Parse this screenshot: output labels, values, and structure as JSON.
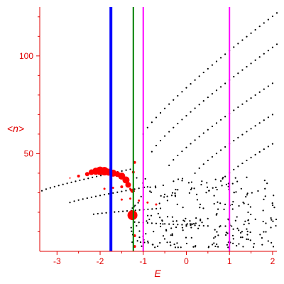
{
  "chart_data": {
    "type": "scatter",
    "title": "",
    "xlabel": "E",
    "ylabel": "<n>",
    "xlim": [
      -3.4,
      2.1
    ],
    "ylim": [
      0,
      125
    ],
    "xticks": [
      -3,
      -2,
      -1,
      0,
      1,
      2
    ],
    "xtick_labels": [
      "-3",
      "-2",
      "-1",
      "0",
      "1",
      "2"
    ],
    "yticks": [
      50,
      100
    ],
    "ytick_labels": [
      "50",
      "100"
    ],
    "grid": false,
    "axis_color": "#e00000",
    "colors": {
      "black_dots": "#000000",
      "red_dots": "#ff0000",
      "blue_line": "#0000ff",
      "green_line": "#008000",
      "magenta_line": "#ff00ff"
    },
    "vertical_lines": [
      {
        "x": -1.75,
        "color": "#0000ff",
        "weight": "thick"
      },
      {
        "x": -1.23,
        "color": "#008000",
        "weight": "thin"
      },
      {
        "x": -1.0,
        "color": "#ff00ff",
        "weight": "thin"
      },
      {
        "x": 1.0,
        "color": "#ff00ff",
        "weight": "thin"
      }
    ],
    "series": [
      {
        "color": "#000000",
        "marker": "small-dot",
        "bands": [
          {
            "x_start": -1.0,
            "x_end": 2.1,
            "y_start": 60,
            "y_end": 122
          },
          {
            "x_start": -0.8,
            "x_end": 2.1,
            "y_start": 51,
            "y_end": 106
          },
          {
            "x_start": -0.4,
            "x_end": 2.0,
            "y_start": 44,
            "y_end": 86
          },
          {
            "x_start": 0.2,
            "x_end": 2.0,
            "y_start": 40,
            "y_end": 70
          },
          {
            "x_start": 0.8,
            "x_end": 2.0,
            "y_start": 36,
            "y_end": 55
          },
          {
            "x_start": -3.35,
            "x_end": -1.3,
            "y_start": 31,
            "y_end": 42
          },
          {
            "x_start": -2.7,
            "x_end": -0.9,
            "y_start": 25,
            "y_end": 33
          },
          {
            "x_start": -2.15,
            "x_end": -0.6,
            "y_start": 19,
            "y_end": 22
          },
          {
            "x_start": -1.2,
            "x_end": 0.5,
            "y_start": 15,
            "y_end": 13
          }
        ],
        "cloud": {
          "x_range": [
            -1.3,
            2.1
          ],
          "y_range": [
            2,
            38
          ],
          "count": 260
        }
      },
      {
        "color": "#ff0000",
        "marker": "dot-sized-by-weight",
        "points": [
          {
            "x": -2.3,
            "y": 39.5,
            "size": 3
          },
          {
            "x": -2.2,
            "y": 40.5,
            "size": 4
          },
          {
            "x": -2.1,
            "y": 41.0,
            "size": 5
          },
          {
            "x": -2.0,
            "y": 41.2,
            "size": 6
          },
          {
            "x": -1.9,
            "y": 41.0,
            "size": 6
          },
          {
            "x": -1.8,
            "y": 40.5,
            "size": 5
          },
          {
            "x": -1.7,
            "y": 40.0,
            "size": 5
          },
          {
            "x": -1.6,
            "y": 39.5,
            "size": 4
          },
          {
            "x": -1.5,
            "y": 38.5,
            "size": 5
          },
          {
            "x": -1.4,
            "y": 36.5,
            "size": 5
          },
          {
            "x": -1.35,
            "y": 34.0,
            "size": 4
          },
          {
            "x": -1.25,
            "y": 31.0,
            "size": 3
          },
          {
            "x": -1.2,
            "y": 45.5,
            "size": 2
          },
          {
            "x": -1.23,
            "y": 40.5,
            "size": 2
          },
          {
            "x": -1.25,
            "y": 18.5,
            "size": 7
          },
          {
            "x": -1.2,
            "y": 8.0,
            "size": 2
          },
          {
            "x": -1.2,
            "y": 2.5,
            "size": 2
          },
          {
            "x": -2.5,
            "y": 38.5,
            "size": 2
          },
          {
            "x": -2.7,
            "y": 37.5,
            "size": 1
          },
          {
            "x": -1.9,
            "y": 32.0,
            "size": 1.5
          },
          {
            "x": -1.7,
            "y": 32.5,
            "size": 1.5
          },
          {
            "x": -1.5,
            "y": 33.0,
            "size": 2
          },
          {
            "x": -1.3,
            "y": 32.0,
            "size": 1.5
          },
          {
            "x": -1.5,
            "y": 26.5,
            "size": 1.5
          },
          {
            "x": -1.3,
            "y": 27.0,
            "size": 1.5
          },
          {
            "x": -1.1,
            "y": 26.0,
            "size": 1.5
          },
          {
            "x": -0.9,
            "y": 25.0,
            "size": 1.5
          },
          {
            "x": -0.7,
            "y": 24.0,
            "size": 1.5
          }
        ]
      }
    ]
  }
}
